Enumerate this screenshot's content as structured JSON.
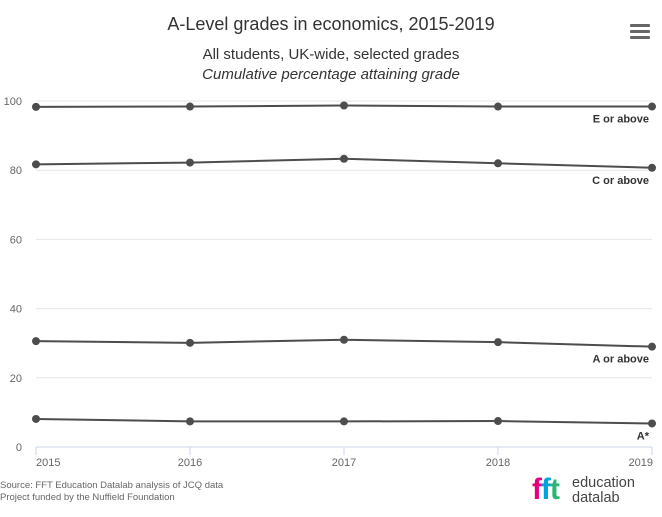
{
  "title": "A-Level grades in economics, 2015-2019",
  "subtitle": "All students, UK-wide, selected grades",
  "subtitle2": "Cumulative percentage attaining grade",
  "menu_icon": "hamburger-menu-icon",
  "source_line1": "Source: FFT Education Datalab analysis of JCQ data",
  "source_line2": "Project funded by the Nuffield Foundation",
  "logo": {
    "letters": [
      "f",
      "f",
      "t"
    ],
    "letter_colors": [
      "#e6007e",
      "#00a3e0",
      "#2bb673"
    ],
    "line1": "education",
    "line2": "datalab"
  },
  "chart_data": {
    "type": "line",
    "x": [
      2015,
      2016,
      2017,
      2018,
      2019
    ],
    "ylim": [
      0,
      100
    ],
    "yticks": [
      0,
      20,
      40,
      60,
      80,
      100
    ],
    "grid": true,
    "line_color": "#4d4d4d",
    "series": [
      {
        "name": "E or above",
        "values": [
          98.3,
          98.4,
          98.7,
          98.4,
          98.4
        ]
      },
      {
        "name": "C or above",
        "values": [
          81.7,
          82.2,
          83.3,
          82.0,
          80.7
        ]
      },
      {
        "name": "A or above",
        "values": [
          30.6,
          30.1,
          31.0,
          30.3,
          29.0
        ]
      },
      {
        "name": "A*",
        "values": [
          8.1,
          7.4,
          7.4,
          7.5,
          6.8
        ]
      }
    ]
  }
}
